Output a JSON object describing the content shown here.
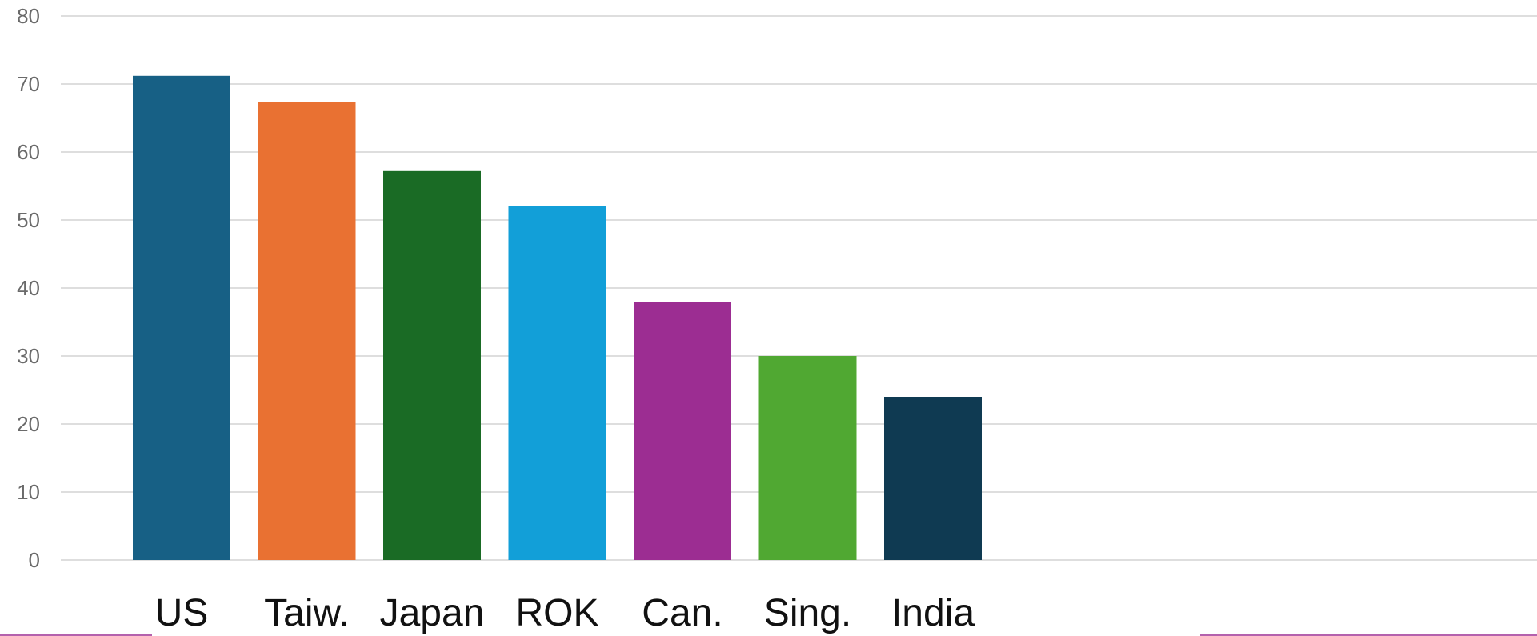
{
  "chart_data": {
    "type": "bar",
    "categories": [
      "US",
      "Taiw.",
      "Japan",
      "ROK",
      "Can.",
      "Sing.",
      "India"
    ],
    "values": [
      71.2,
      67.3,
      57.2,
      52,
      38,
      30,
      24
    ],
    "colors": [
      "#176085",
      "#e97132",
      "#1a6b25",
      "#129fd8",
      "#9c2d92",
      "#50a832",
      "#0f3a52"
    ],
    "ylim": [
      0,
      80
    ],
    "yticks": [
      0,
      10,
      20,
      30,
      40,
      50,
      60,
      70,
      80
    ],
    "title": "",
    "xlabel": "",
    "ylabel": "",
    "grid": true,
    "gridline_color": "#d4d4d4",
    "footer_line_color": "#9c2d92"
  }
}
